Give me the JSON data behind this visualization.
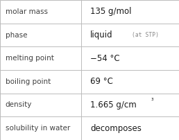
{
  "rows": [
    {
      "label": "molar mass",
      "value": "135 g/mol",
      "value_extra": null,
      "superscript": false
    },
    {
      "label": "phase",
      "value": "liquid",
      "value_extra": "(at STP)",
      "superscript": false
    },
    {
      "label": "melting point",
      "value": "−54 °C",
      "value_extra": null,
      "superscript": false
    },
    {
      "label": "boiling point",
      "value": "69 °C",
      "value_extra": null,
      "superscript": false
    },
    {
      "label": "density",
      "value": "1.665 g/cm³",
      "value_extra": null,
      "superscript": true
    },
    {
      "label": "solubility in water",
      "value": "decomposes",
      "value_extra": null,
      "superscript": false
    }
  ],
  "bg_color": "#ffffff",
  "border_color": "#bbbbbb",
  "label_color": "#404040",
  "value_color": "#1a1a1a",
  "extra_color": "#888888",
  "label_fontsize": 7.5,
  "value_fontsize": 8.5,
  "extra_fontsize": 5.8,
  "col_split": 0.455,
  "fig_width": 2.58,
  "fig_height": 2.02,
  "dpi": 100
}
